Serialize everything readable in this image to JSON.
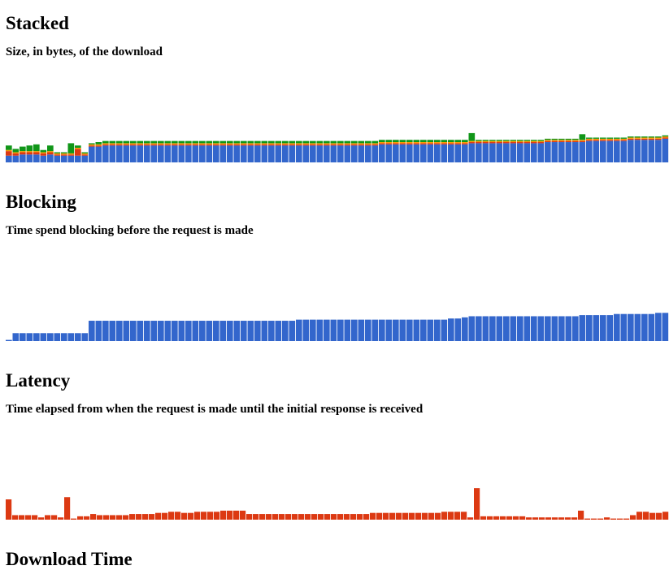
{
  "sections": [
    {
      "title": "Stacked",
      "description": "Size, in bytes, of the download"
    },
    {
      "title": "Blocking",
      "description": "Time spend blocking before the request is made"
    },
    {
      "title": "Latency",
      "description": "Time elapsed from when the request is made until the initial response is received"
    },
    {
      "title": "Download Time",
      "description": ""
    }
  ],
  "colors": {
    "blocking": "#3366cc",
    "latency": "#dc3912",
    "download": "#109618",
    "between": "#ff9900"
  },
  "chart_data": [
    {
      "type": "bar",
      "title": "Stacked",
      "stacked": true,
      "ylim": [
        0,
        80
      ],
      "series": [
        {
          "name": "",
          "color": "#3366cc",
          "values": [
            6,
            6,
            7,
            7,
            7,
            6,
            7,
            6,
            6,
            6,
            6,
            6,
            14,
            14,
            15,
            15,
            15,
            15,
            15,
            15,
            15,
            15,
            15,
            15,
            15,
            15,
            15,
            15,
            15,
            15,
            15,
            15,
            15,
            15,
            15,
            15,
            15,
            15,
            15,
            15,
            15,
            15,
            15,
            15,
            15,
            15,
            15,
            15,
            15,
            15,
            15,
            15,
            15,
            15,
            16,
            16,
            16,
            16,
            16,
            16,
            16,
            16,
            16,
            16,
            16,
            16,
            16,
            17,
            17,
            17,
            17,
            17,
            17,
            17,
            17,
            17,
            17,
            17,
            18,
            18,
            18,
            18,
            18,
            18,
            19,
            19,
            19,
            19,
            19,
            19,
            20,
            20,
            20,
            20,
            20,
            21
          ]
        },
        {
          "name": "",
          "color": "#dc3912",
          "values": [
            4,
            2,
            2,
            2,
            2,
            2,
            2,
            1,
            1,
            1,
            6,
            1,
            1,
            1,
            1,
            1,
            1,
            1,
            1,
            1,
            1,
            1,
            1,
            1,
            1,
            1,
            1,
            1,
            1,
            1,
            1,
            1,
            1,
            1,
            1,
            1,
            1,
            1,
            1,
            1,
            1,
            1,
            1,
            1,
            1,
            1,
            1,
            1,
            1,
            1,
            1,
            1,
            1,
            1,
            1,
            1,
            1,
            1,
            1,
            1,
            1,
            1,
            1,
            1,
            1,
            1,
            1,
            1,
            1,
            1,
            1,
            1,
            1,
            1,
            1,
            1,
            1,
            1,
            1,
            1,
            1,
            1,
            1,
            1,
            1,
            1,
            1,
            1,
            1,
            1,
            1,
            1,
            1,
            1,
            1,
            1
          ]
        },
        {
          "name": "",
          "color": "#ff9900",
          "values": [
            1,
            1,
            1,
            1,
            1,
            1,
            1,
            1,
            1,
            1,
            1,
            1,
            1,
            1,
            1,
            1,
            1,
            1,
            1,
            1,
            1,
            1,
            1,
            1,
            1,
            1,
            1,
            1,
            1,
            1,
            1,
            1,
            1,
            1,
            1,
            1,
            1,
            1,
            1,
            1,
            1,
            1,
            1,
            1,
            1,
            1,
            1,
            1,
            1,
            1,
            1,
            1,
            1,
            1,
            1,
            1,
            1,
            1,
            1,
            1,
            1,
            1,
            1,
            1,
            1,
            1,
            1,
            1,
            1,
            1,
            1,
            1,
            1,
            1,
            1,
            1,
            1,
            1,
            1,
            1,
            1,
            1,
            1,
            1,
            1,
            1,
            1,
            1,
            1,
            1,
            1,
            1,
            1,
            1,
            1,
            1
          ]
        },
        {
          "name": "",
          "color": "#109618",
          "values": [
            4,
            3,
            4,
            5,
            6,
            2,
            5,
            1,
            1,
            9,
            2,
            1,
            1,
            2,
            2,
            2,
            2,
            2,
            2,
            2,
            2,
            2,
            2,
            2,
            2,
            2,
            2,
            2,
            2,
            2,
            2,
            2,
            2,
            2,
            2,
            2,
            2,
            2,
            2,
            2,
            2,
            2,
            2,
            2,
            2,
            2,
            2,
            2,
            2,
            2,
            2,
            2,
            2,
            2,
            2,
            2,
            2,
            2,
            2,
            2,
            2,
            2,
            2,
            2,
            2,
            2,
            2,
            7,
            1,
            1,
            1,
            1,
            1,
            1,
            1,
            1,
            1,
            1,
            1,
            1,
            1,
            1,
            1,
            5,
            1,
            1,
            1,
            1,
            1,
            1,
            1,
            1,
            1,
            1,
            1,
            1
          ]
        }
      ]
    },
    {
      "type": "bar",
      "title": "Blocking",
      "ylim": [
        0,
        80
      ],
      "series": [
        {
          "name": "",
          "color": "#3366cc",
          "values": [
            1,
            7,
            7,
            7,
            7,
            7,
            7,
            7,
            7,
            7,
            7,
            7,
            18,
            18,
            18,
            18,
            18,
            18,
            18,
            18,
            18,
            18,
            18,
            18,
            18,
            18,
            18,
            18,
            18,
            18,
            18,
            18,
            18,
            18,
            18,
            18,
            18,
            18,
            18,
            18,
            18,
            18,
            19,
            19,
            19,
            19,
            19,
            19,
            19,
            19,
            19,
            19,
            19,
            19,
            19,
            19,
            19,
            19,
            19,
            19,
            19,
            19,
            19,
            19,
            20,
            20,
            21,
            22,
            22,
            22,
            22,
            22,
            22,
            22,
            22,
            22,
            22,
            22,
            22,
            22,
            22,
            22,
            22,
            23,
            23,
            23,
            23,
            23,
            24,
            24,
            24,
            24,
            24,
            24,
            25,
            25
          ]
        }
      ]
    },
    {
      "type": "bar",
      "title": "Latency",
      "ylim": [
        0,
        80
      ],
      "series": [
        {
          "name": "",
          "color": "#dc3912",
          "values": [
            18,
            4,
            4,
            4,
            4,
            2,
            4,
            4,
            2,
            20,
            1,
            3,
            3,
            5,
            4,
            4,
            4,
            4,
            4,
            5,
            5,
            5,
            5,
            6,
            6,
            7,
            7,
            6,
            6,
            7,
            7,
            7,
            7,
            8,
            8,
            8,
            8,
            5,
            5,
            5,
            5,
            5,
            5,
            5,
            5,
            5,
            5,
            5,
            5,
            5,
            5,
            5,
            5,
            5,
            5,
            5,
            6,
            6,
            6,
            6,
            6,
            6,
            6,
            6,
            6,
            6,
            6,
            7,
            7,
            7,
            7,
            2,
            28,
            3,
            3,
            3,
            3,
            3,
            3,
            3,
            2,
            2,
            2,
            2,
            2,
            2,
            2,
            2,
            8,
            1,
            1,
            1,
            2,
            1,
            1,
            1,
            4,
            7,
            7,
            6,
            6,
            7
          ]
        }
      ]
    }
  ]
}
